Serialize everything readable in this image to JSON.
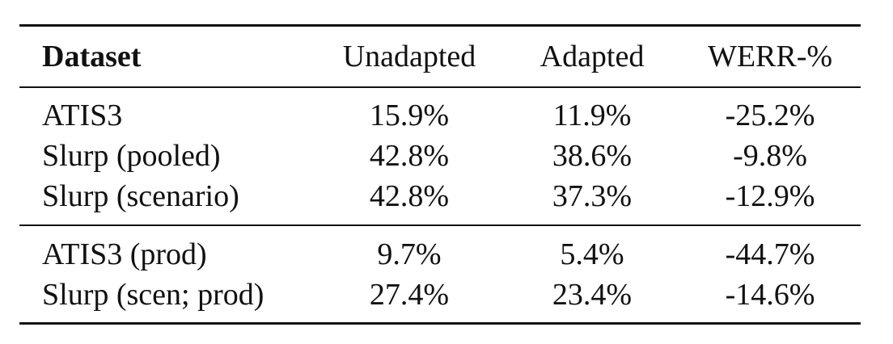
{
  "table": {
    "headers": [
      "Dataset",
      "Unadapted",
      "Adapted",
      "WERR-%"
    ],
    "groups": [
      [
        [
          "ATIS3",
          "15.9%",
          "11.9%",
          "-25.2%"
        ],
        [
          "Slurp (pooled)",
          "42.8%",
          "38.6%",
          "-9.8%"
        ],
        [
          "Slurp (scenario)",
          "42.8%",
          "37.3%",
          "-12.9%"
        ]
      ],
      [
        [
          "ATIS3 (prod)",
          "9.7%",
          "5.4%",
          "-44.7%"
        ],
        [
          "Slurp (scen; prod)",
          "27.4%",
          "23.4%",
          "-14.6%"
        ]
      ]
    ]
  }
}
